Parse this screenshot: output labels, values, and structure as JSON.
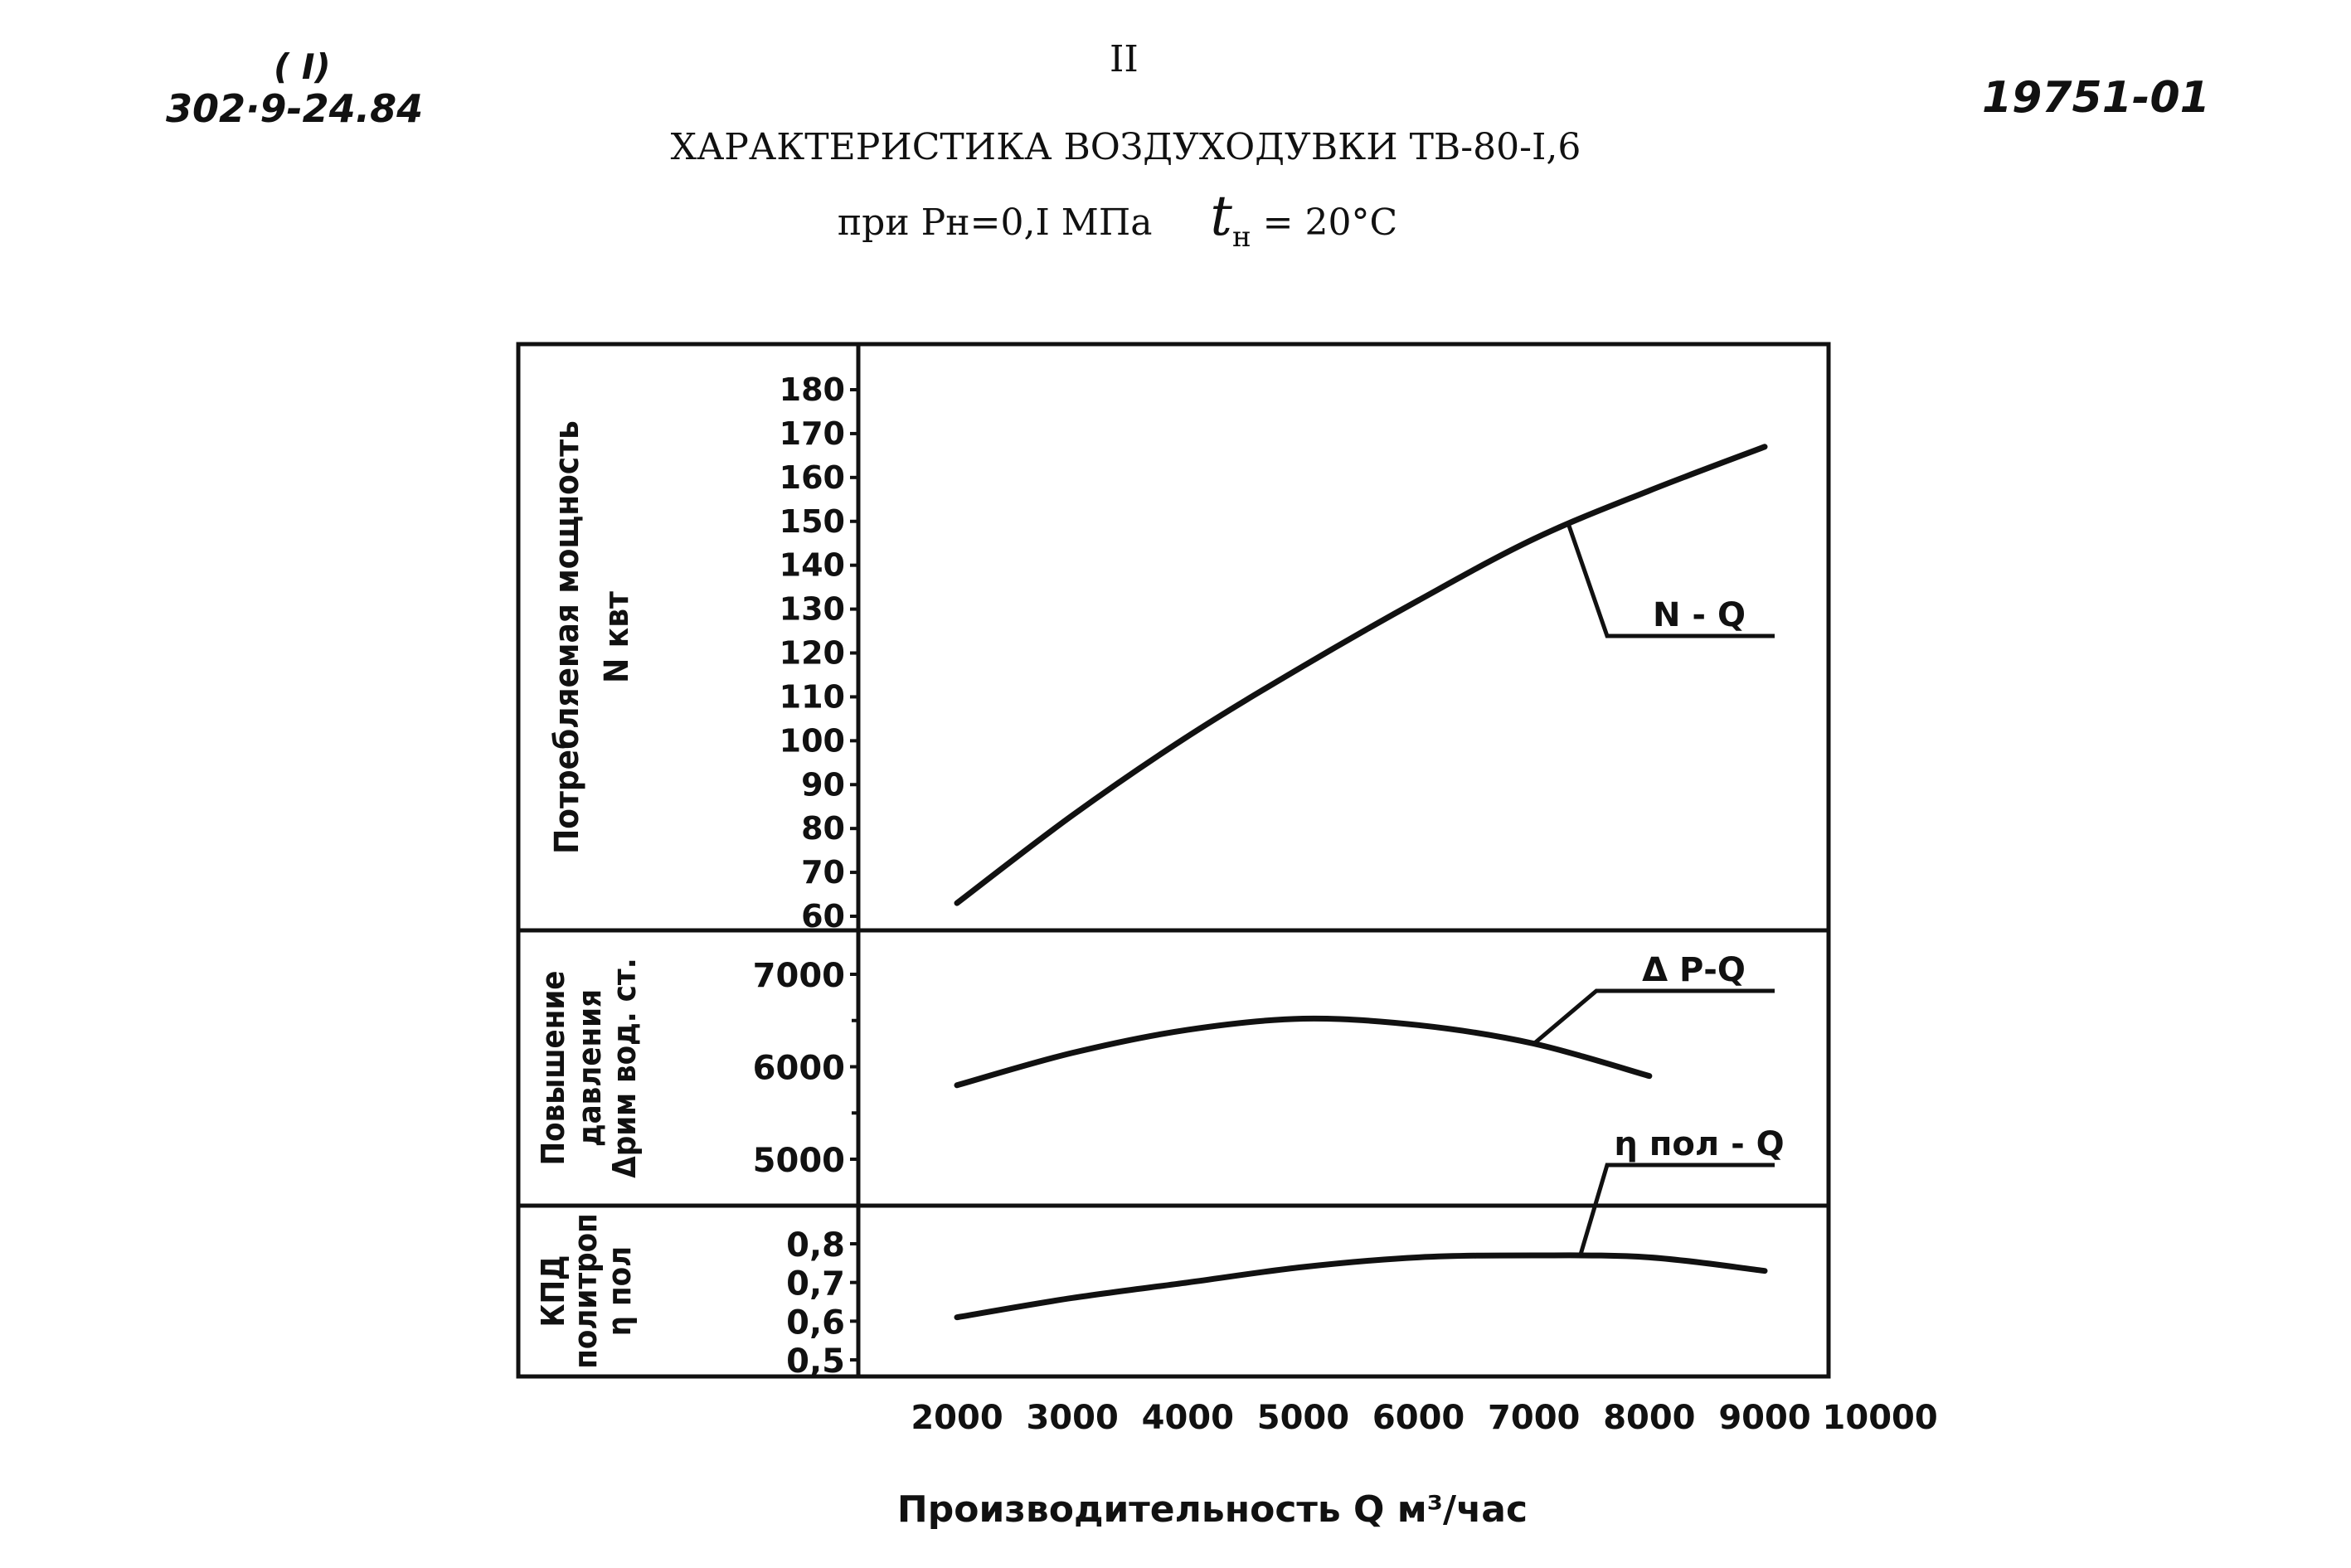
{
  "header": {
    "sheet_roman": "( I)",
    "doc_code": "302·9-24.84",
    "page_number": "II",
    "drawing_number": "19751-01",
    "title": "ХАРАКТЕРИСТИКА ВОЗДУХОДУВКИ ТВ-80-I,6",
    "subtitle_conditions": "при Рн=0,I МПа",
    "subtitle_t": "t",
    "subtitle_t_sub": "н",
    "subtitle_temp": "= 20°С"
  },
  "chart_data": {
    "type": "line",
    "x_axis": {
      "label": "Производительность  Q  м³/час",
      "ticks": [
        2000,
        3000,
        4000,
        5000,
        6000,
        7000,
        8000,
        9000,
        10000
      ],
      "range": [
        2000,
        10000
      ]
    },
    "panels": [
      {
        "id": "power",
        "ylabel_lines": [
          "Потребляемая мощность",
          "N квт"
        ],
        "ylim": [
          60,
          180
        ],
        "yticks": [
          60,
          70,
          80,
          90,
          100,
          110,
          120,
          130,
          140,
          150,
          160,
          170,
          180
        ],
        "series": [
          {
            "name": "N - Q",
            "x": [
              2000,
              3000,
              4000,
              5000,
              6000,
              7000,
              8000,
              9000
            ],
            "y": [
              63,
              83,
              101,
              117,
              132,
              146,
              157,
              167
            ]
          }
        ],
        "callout": {
          "text": "N - Q",
          "at_x": 7300
        }
      },
      {
        "id": "pressure",
        "ylabel_lines": [
          "Повышение",
          "давления",
          "Δрим вод. ст."
        ],
        "ylim": [
          4550,
          7500
        ],
        "yticks": [
          5000,
          6000,
          7000
        ],
        "series": [
          {
            "name": "Δ Р-Q",
            "x": [
              2000,
              3000,
              4000,
              5000,
              6000,
              7000,
              8000
            ],
            "y": [
              5800,
              6150,
              6400,
              6520,
              6450,
              6250,
              5900
            ]
          }
        ],
        "callout": {
          "text": "Δ Р-Q",
          "at_x": 7000
        }
      },
      {
        "id": "efficiency",
        "ylabel_lines": [
          "КПД",
          "политроп",
          "η пол"
        ],
        "ylim": [
          0.5,
          0.85
        ],
        "yticks": [
          0.5,
          0.6,
          0.7,
          0.8
        ],
        "yticklabels": [
          "0,5",
          "0,6",
          "0,7",
          "0,8"
        ],
        "series": [
          {
            "name": "η пол - Q",
            "x": [
              2000,
              3000,
              4000,
              5000,
              6000,
              7000,
              8000,
              9000
            ],
            "y": [
              0.61,
              0.66,
              0.7,
              0.74,
              0.765,
              0.77,
              0.765,
              0.73
            ]
          }
        ],
        "callout": {
          "text": "η пол - Q",
          "at_x": 7400
        }
      }
    ]
  }
}
